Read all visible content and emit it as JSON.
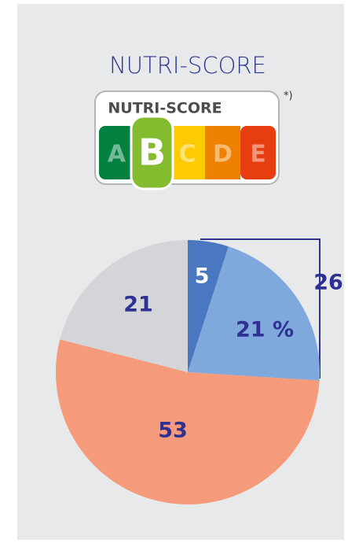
{
  "chart_data": {
    "type": "pie",
    "title": "NUTRI-SCORE",
    "logo": {
      "title": "NUTRI-SCORE",
      "grades": [
        "A",
        "B",
        "C",
        "D",
        "E"
      ],
      "selected": 1,
      "colors": [
        "#038141",
        "#85bb2f",
        "#fecb02",
        "#ee8100",
        "#e63e11"
      ],
      "footnote_mark": "*)"
    },
    "categories": [
      null,
      null,
      null,
      null
    ],
    "values": [
      5,
      21,
      53,
      21
    ],
    "value_labels": [
      "5",
      "21 %",
      "53",
      "21"
    ],
    "colors": [
      "#4a78c0",
      "#7fa9dc",
      "#f59b7c",
      "#d3d5d8"
    ],
    "annotations": [
      {
        "text": "26"
      }
    ]
  }
}
